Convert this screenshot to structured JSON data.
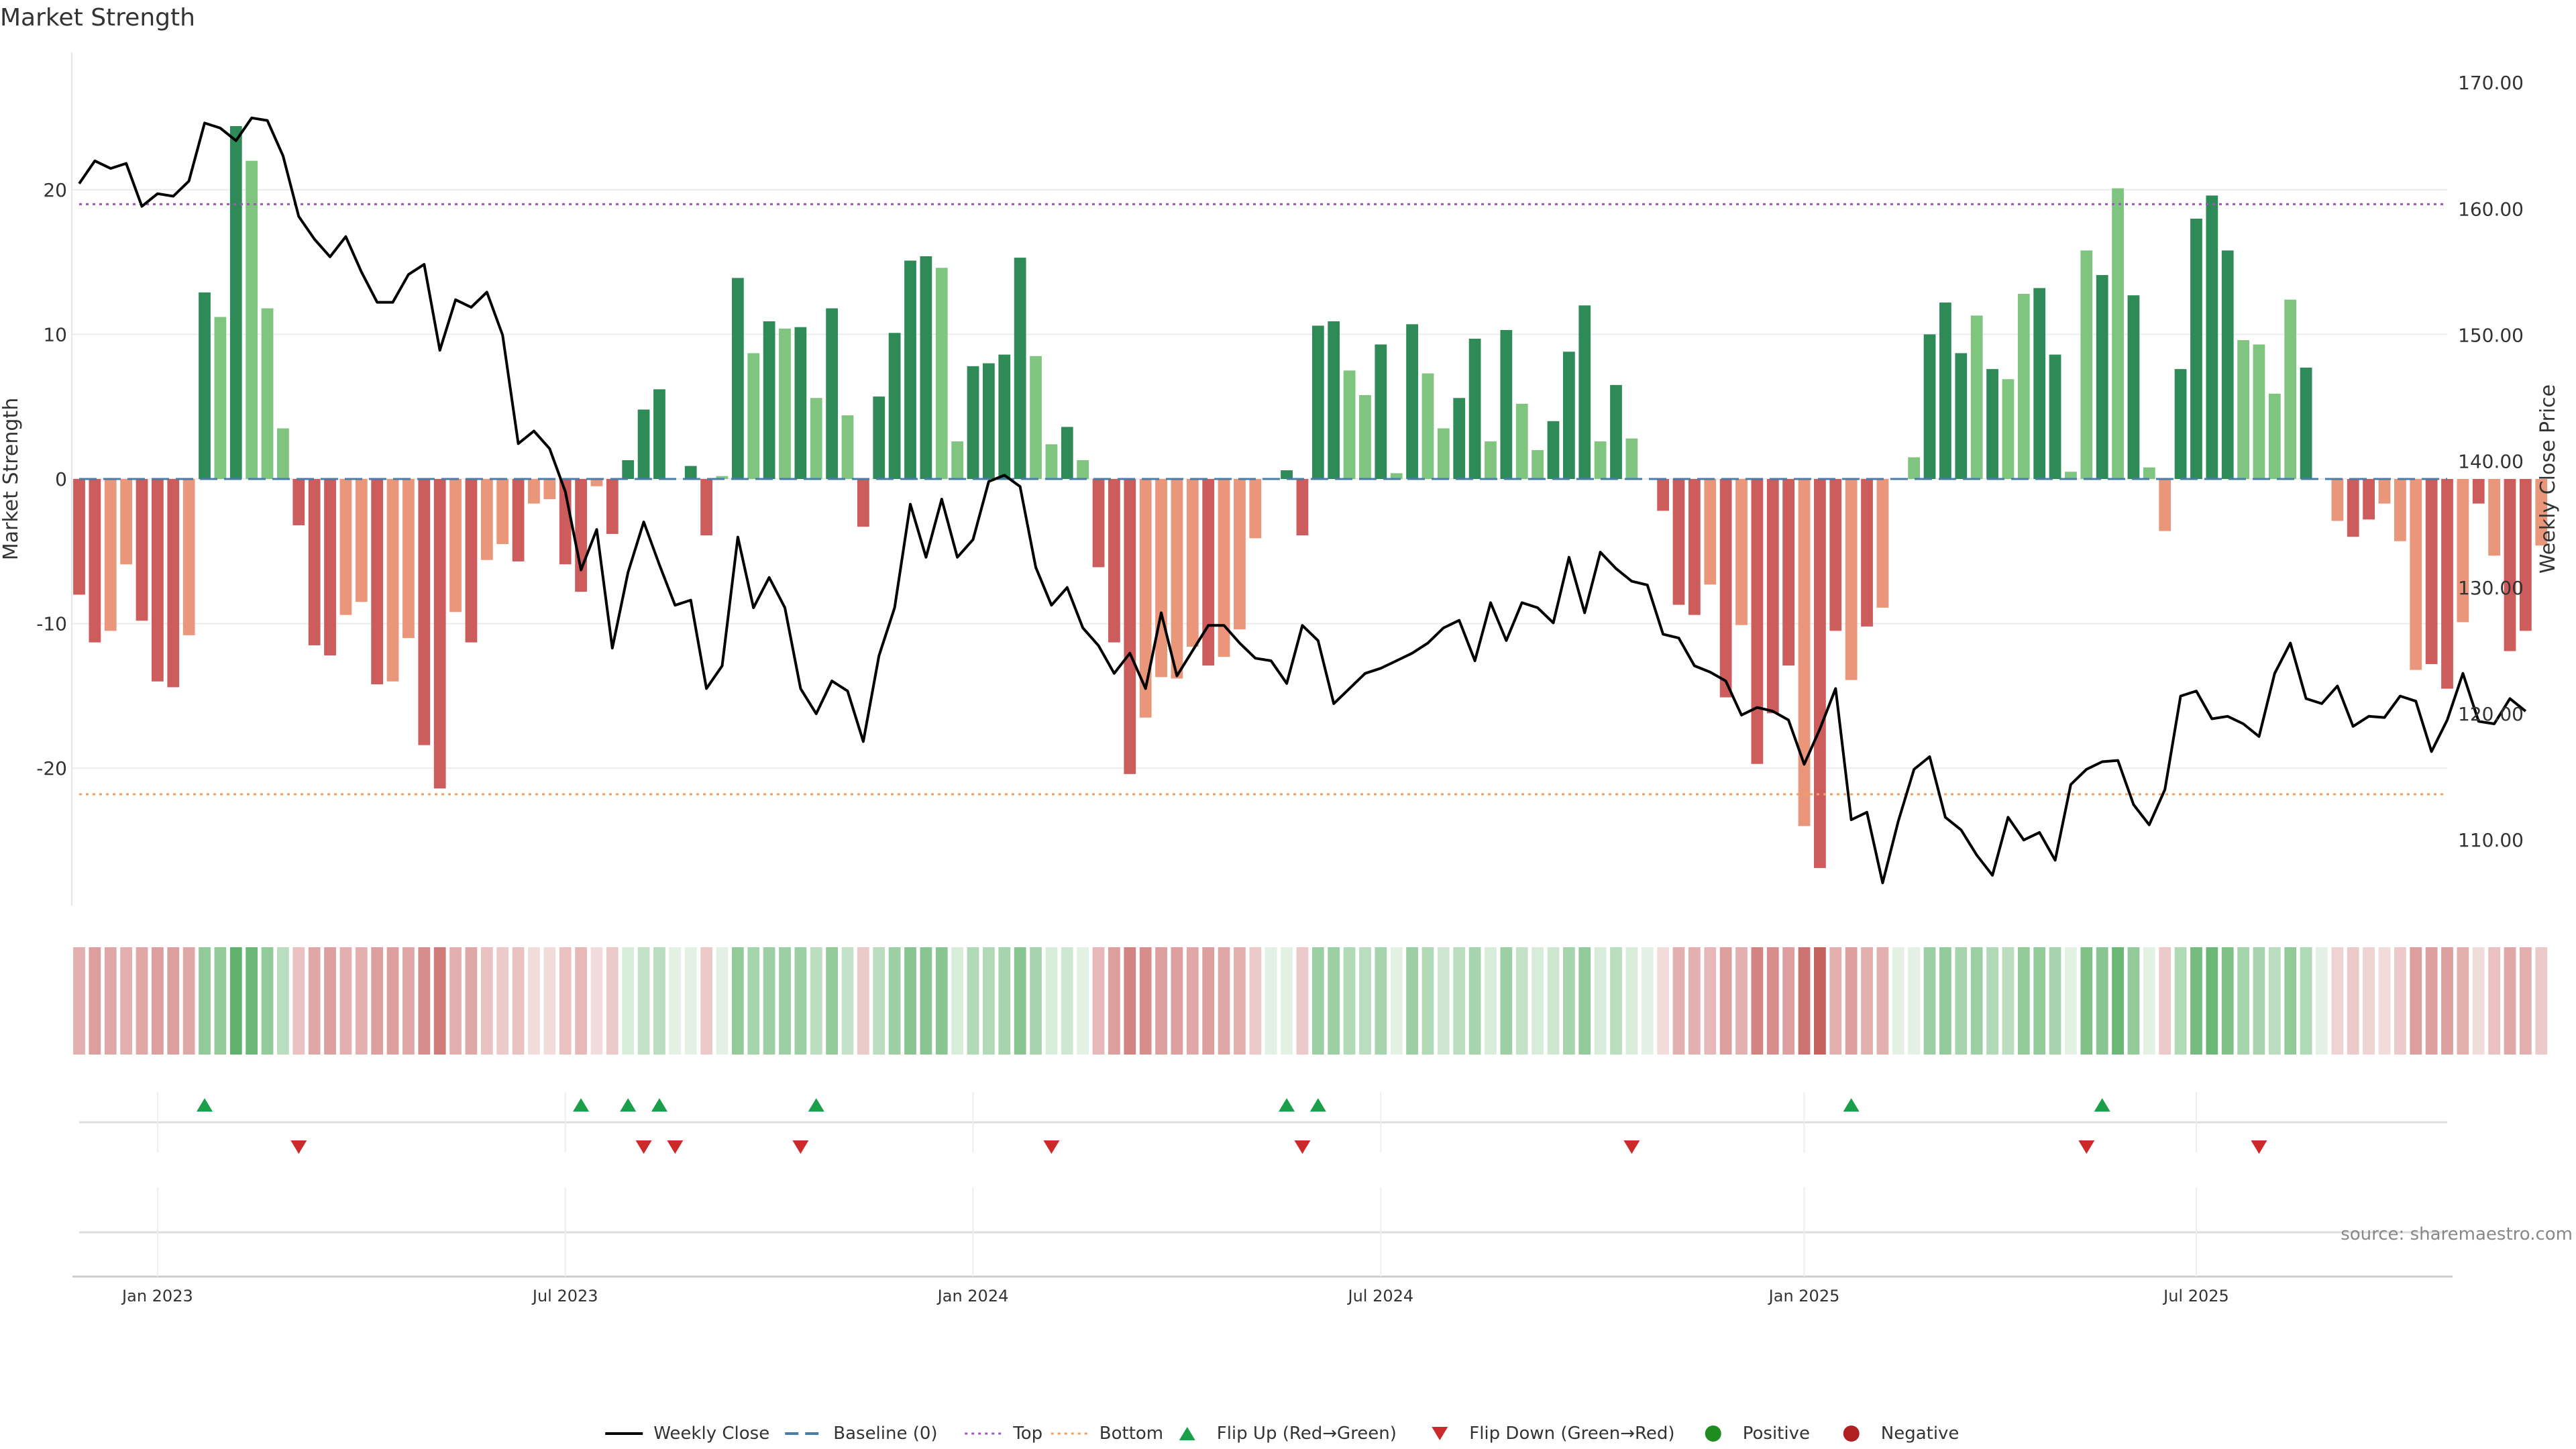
{
  "chart_data": {
    "type": "bar",
    "title": "Market Strength",
    "ylabel_left": "Market Strength",
    "ylabel_right": "Weekly Close Price",
    "source": "source: sharemaestro.com",
    "ylim_left": [
      -29.5,
      29.5
    ],
    "ylim_right": [
      104.8,
      172.4
    ],
    "left_ticks": [
      "20",
      "10",
      "0",
      "-10",
      "-20"
    ],
    "right_ticks": [
      "170.00",
      "160.00",
      "150.00",
      "140.00",
      "130.00",
      "120.00",
      "110.00"
    ],
    "top_line": 19.0,
    "bottom_line": -21.8,
    "x_start": "2022-11-28",
    "x_end": "2025-10-20",
    "x_ticks": [
      {
        "label": "Jan 2023",
        "date": "2023-01-02"
      },
      {
        "label": "Jul 2023",
        "date": "2023-07-03"
      },
      {
        "label": "Jan 2024",
        "date": "2024-01-01"
      },
      {
        "label": "Jul 2024",
        "date": "2024-07-01"
      },
      {
        "label": "Jan 2025",
        "date": "2025-01-06"
      },
      {
        "label": "Jul 2025",
        "date": "2025-06-30"
      }
    ],
    "strength": [
      -8,
      -11.3,
      -10.5,
      -5.9,
      -9.8,
      -14,
      -14.4,
      -10.8,
      12.9,
      11.2,
      24.4,
      22,
      11.8,
      3.5,
      -3.2,
      -11.5,
      -12.2,
      -9.4,
      -8.5,
      -14.2,
      -14,
      -11,
      -18.4,
      -21.4,
      -9.2,
      -11.3,
      -5.6,
      -4.5,
      -5.7,
      -1.7,
      -1.4,
      -5.9,
      -7.8,
      -0.5,
      -3.8,
      1.3,
      4.8,
      6.2,
      0.0,
      0.9,
      -3.9,
      0.2,
      13.9,
      8.7,
      10.9,
      10.4,
      10.5,
      5.6,
      11.8,
      4.4,
      -3.3,
      5.7,
      10.1,
      15.1,
      15.4,
      14.6,
      2.6,
      7.8,
      8.0,
      8.6,
      15.3,
      8.5,
      2.4,
      3.6,
      1.3,
      -6.1,
      -11.3,
      -20.4,
      -16.5,
      -13.7,
      -13.8,
      -11.6,
      -12.9,
      -12.3,
      -10.4,
      -4.1,
      0.0,
      0.6,
      -3.9,
      10.6,
      10.9,
      7.5,
      5.8,
      9.3,
      0.4,
      10.7,
      7.3,
      3.5,
      5.6,
      9.7,
      2.6,
      10.3,
      5.2,
      2.0,
      4.0,
      8.8,
      12.0,
      2.6,
      6.5,
      2.8,
      0.0,
      -2.2,
      -8.7,
      -9.4,
      -7.3,
      -15.1,
      -10.1,
      -19.7,
      -16.2,
      -12.9,
      -24.0,
      -26.9,
      -10.5,
      -13.9,
      -10.2,
      -8.9,
      0.0,
      1.5,
      10.0,
      12.2,
      8.7,
      11.3,
      7.6,
      6.9,
      12.8,
      13.2,
      8.6,
      0.5,
      15.8,
      14.1,
      20.1,
      12.7,
      0.8,
      -3.6,
      7.6,
      18.0,
      19.6,
      15.8,
      9.6,
      9.3,
      5.9,
      12.4,
      7.7,
      0.0,
      -2.9,
      -4.0,
      -2.8,
      -1.7,
      -4.3,
      -13.2,
      -12.8,
      -14.5,
      -9.9,
      -1.7,
      -5.3,
      -11.9,
      -10.5,
      -4.6
    ],
    "bar_shade": [
      "d",
      "d",
      "l",
      "l",
      "d",
      "d",
      "d",
      "l",
      "d",
      "l",
      "d",
      "l",
      "l",
      "l",
      "d",
      "d",
      "d",
      "l",
      "l",
      "d",
      "l",
      "l",
      "d",
      "d",
      "l",
      "d",
      "l",
      "l",
      "d",
      "l",
      "l",
      "d",
      "d",
      "l",
      "d",
      "d",
      "d",
      "d",
      "l",
      "d",
      "d",
      "l",
      "d",
      "l",
      "d",
      "l",
      "d",
      "l",
      "d",
      "l",
      "d",
      "d",
      "d",
      "d",
      "d",
      "l",
      "l",
      "d",
      "d",
      "d",
      "d",
      "l",
      "l",
      "d",
      "l",
      "d",
      "d",
      "d",
      "l",
      "l",
      "l",
      "l",
      "d",
      "l",
      "l",
      "l",
      "l",
      "d",
      "d",
      "d",
      "d",
      "l",
      "l",
      "d",
      "l",
      "d",
      "l",
      "l",
      "d",
      "d",
      "l",
      "d",
      "l",
      "l",
      "d",
      "d",
      "d",
      "l",
      "d",
      "l",
      "l",
      "d",
      "d",
      "d",
      "l",
      "d",
      "l",
      "d",
      "d",
      "d",
      "l",
      "d",
      "d",
      "l",
      "d",
      "l",
      "l",
      "l",
      "d",
      "d",
      "d",
      "l",
      "d",
      "l",
      "l",
      "d",
      "d",
      "l",
      "l",
      "d",
      "l",
      "d",
      "l",
      "l",
      "d",
      "d",
      "d",
      "d",
      "l",
      "l",
      "l",
      "l",
      "d",
      "l",
      "l",
      "d",
      "d",
      "l",
      "l",
      "l",
      "d",
      "d",
      "l",
      "d",
      "l",
      "d",
      "d",
      "l",
      "d",
      "l",
      "l",
      "l"
    ],
    "weekly_close": [
      162.0,
      163.8,
      163.2,
      163.6,
      160.2,
      161.2,
      161.0,
      162.2,
      166.8,
      166.4,
      165.4,
      167.2,
      167.0,
      164.2,
      159.4,
      157.6,
      156.2,
      157.8,
      155.0,
      152.6,
      152.6,
      154.8,
      155.6,
      148.8,
      152.8,
      152.2,
      153.4,
      150.0,
      141.4,
      142.4,
      141.0,
      137.6,
      131.4,
      134.6,
      125.2,
      131.2,
      135.2,
      131.8,
      128.6,
      129.0,
      122.0,
      123.8,
      134.0,
      128.4,
      130.8,
      128.4,
      122.0,
      120.0,
      122.6,
      121.8,
      117.8,
      124.6,
      128.4,
      136.6,
      132.4,
      137.0,
      132.4,
      133.8,
      138.4,
      138.9,
      138.0,
      131.6,
      128.6,
      130.0,
      126.8,
      125.4,
      123.2,
      124.8,
      122.0,
      128.0,
      123.0,
      125.0,
      127.0,
      127.0,
      125.6,
      124.4,
      124.2,
      122.4,
      127.0,
      125.8,
      120.8,
      122.0,
      123.2,
      123.6,
      124.2,
      124.8,
      125.6,
      126.8,
      127.4,
      124.2,
      128.8,
      125.8,
      128.8,
      128.4,
      127.2,
      132.4,
      128.0,
      132.8,
      131.5,
      130.5,
      130.2,
      126.3,
      126.0,
      123.8,
      123.3,
      122.6,
      119.9,
      120.5,
      120.2,
      119.5,
      116.0,
      118.8,
      122.0,
      111.6,
      112.2,
      106.6,
      111.5,
      115.6,
      116.6,
      111.8,
      110.8,
      108.8,
      107.2,
      111.8,
      110.0,
      110.6,
      108.4,
      114.4,
      115.6,
      116.2,
      116.3,
      112.8,
      111.2,
      114.0,
      121.4,
      121.8,
      119.6,
      119.8,
      119.2,
      118.2,
      123.2,
      125.6,
      121.2,
      120.8,
      122.2,
      119.0,
      119.8,
      119.7,
      121.4,
      121.0,
      117.0,
      119.5,
      123.2,
      119.4,
      119.2,
      121.2,
      120.2
    ],
    "heat_alpha": [
      0.45,
      0.55,
      0.5,
      0.45,
      0.5,
      0.55,
      0.55,
      0.5,
      0.55,
      0.55,
      0.8,
      0.75,
      0.55,
      0.35,
      0.35,
      0.5,
      0.55,
      0.45,
      0.45,
      0.55,
      0.55,
      0.5,
      0.65,
      0.75,
      0.45,
      0.5,
      0.35,
      0.3,
      0.35,
      0.2,
      0.2,
      0.35,
      0.4,
      0.2,
      0.3,
      0.2,
      0.3,
      0.35,
      0.15,
      0.15,
      0.3,
      0.15,
      0.55,
      0.45,
      0.5,
      0.5,
      0.5,
      0.35,
      0.55,
      0.3,
      0.3,
      0.35,
      0.5,
      0.6,
      0.6,
      0.6,
      0.2,
      0.4,
      0.4,
      0.45,
      0.6,
      0.45,
      0.2,
      0.25,
      0.15,
      0.4,
      0.55,
      0.7,
      0.65,
      0.55,
      0.55,
      0.5,
      0.55,
      0.5,
      0.45,
      0.3,
      0.15,
      0.15,
      0.3,
      0.5,
      0.5,
      0.4,
      0.35,
      0.45,
      0.15,
      0.5,
      0.4,
      0.25,
      0.35,
      0.45,
      0.2,
      0.5,
      0.3,
      0.2,
      0.25,
      0.45,
      0.55,
      0.2,
      0.35,
      0.2,
      0.15,
      0.2,
      0.45,
      0.45,
      0.4,
      0.55,
      0.45,
      0.7,
      0.65,
      0.55,
      0.8,
      0.9,
      0.45,
      0.55,
      0.45,
      0.45,
      0.15,
      0.15,
      0.5,
      0.55,
      0.45,
      0.5,
      0.4,
      0.35,
      0.55,
      0.55,
      0.45,
      0.15,
      0.65,
      0.6,
      0.75,
      0.55,
      0.15,
      0.3,
      0.4,
      0.7,
      0.75,
      0.65,
      0.45,
      0.45,
      0.35,
      0.55,
      0.4,
      0.15,
      0.25,
      0.3,
      0.25,
      0.2,
      0.3,
      0.55,
      0.55,
      0.55,
      0.45,
      0.2,
      0.35,
      0.5,
      0.45,
      0.3
    ],
    "flip_up_dates": [
      "2023-01-23",
      "2023-07-10",
      "2023-07-31",
      "2023-08-14",
      "2023-10-23",
      "2024-05-20",
      "2024-06-03",
      "2025-01-27",
      "2025-05-19"
    ],
    "flip_down_dates": [
      "2023-03-06",
      "2023-08-07",
      "2023-08-21",
      "2023-10-16",
      "2024-02-05",
      "2024-05-27",
      "2024-10-21",
      "2025-05-12",
      "2025-07-28"
    ],
    "legend": [
      {
        "label": "Weekly Close",
        "marker": "line",
        "color": "#000000"
      },
      {
        "label": "Baseline (0)",
        "marker": "dash",
        "color": "#4a7ca8"
      },
      {
        "label": "Top",
        "marker": "dot-line",
        "color": "#9b59b6"
      },
      {
        "label": "Bottom",
        "marker": "dot-line",
        "color": "#f0a060"
      },
      {
        "label": "Flip Up (Red→Green)",
        "marker": "triangle-up",
        "color": "#1aa04a"
      },
      {
        "label": "Flip Down (Green→Red)",
        "marker": "triangle-down",
        "color": "#cc2a2a"
      },
      {
        "label": "Positive",
        "marker": "circle",
        "color": "#1e8c1e"
      },
      {
        "label": "Negative",
        "marker": "circle",
        "color": "#b02020"
      }
    ],
    "colors": {
      "pos_dark": "#2e8b57",
      "pos_light": "#7fc47f",
      "neg_dark": "#cd5c5c",
      "neg_light": "#e9967a",
      "heat_pos": "#3a9f47",
      "heat_neg": "#c0504d",
      "top": "#9b59b6",
      "bottom": "#f0a060",
      "baseline": "#4a7ca8",
      "price": "#000000"
    }
  }
}
